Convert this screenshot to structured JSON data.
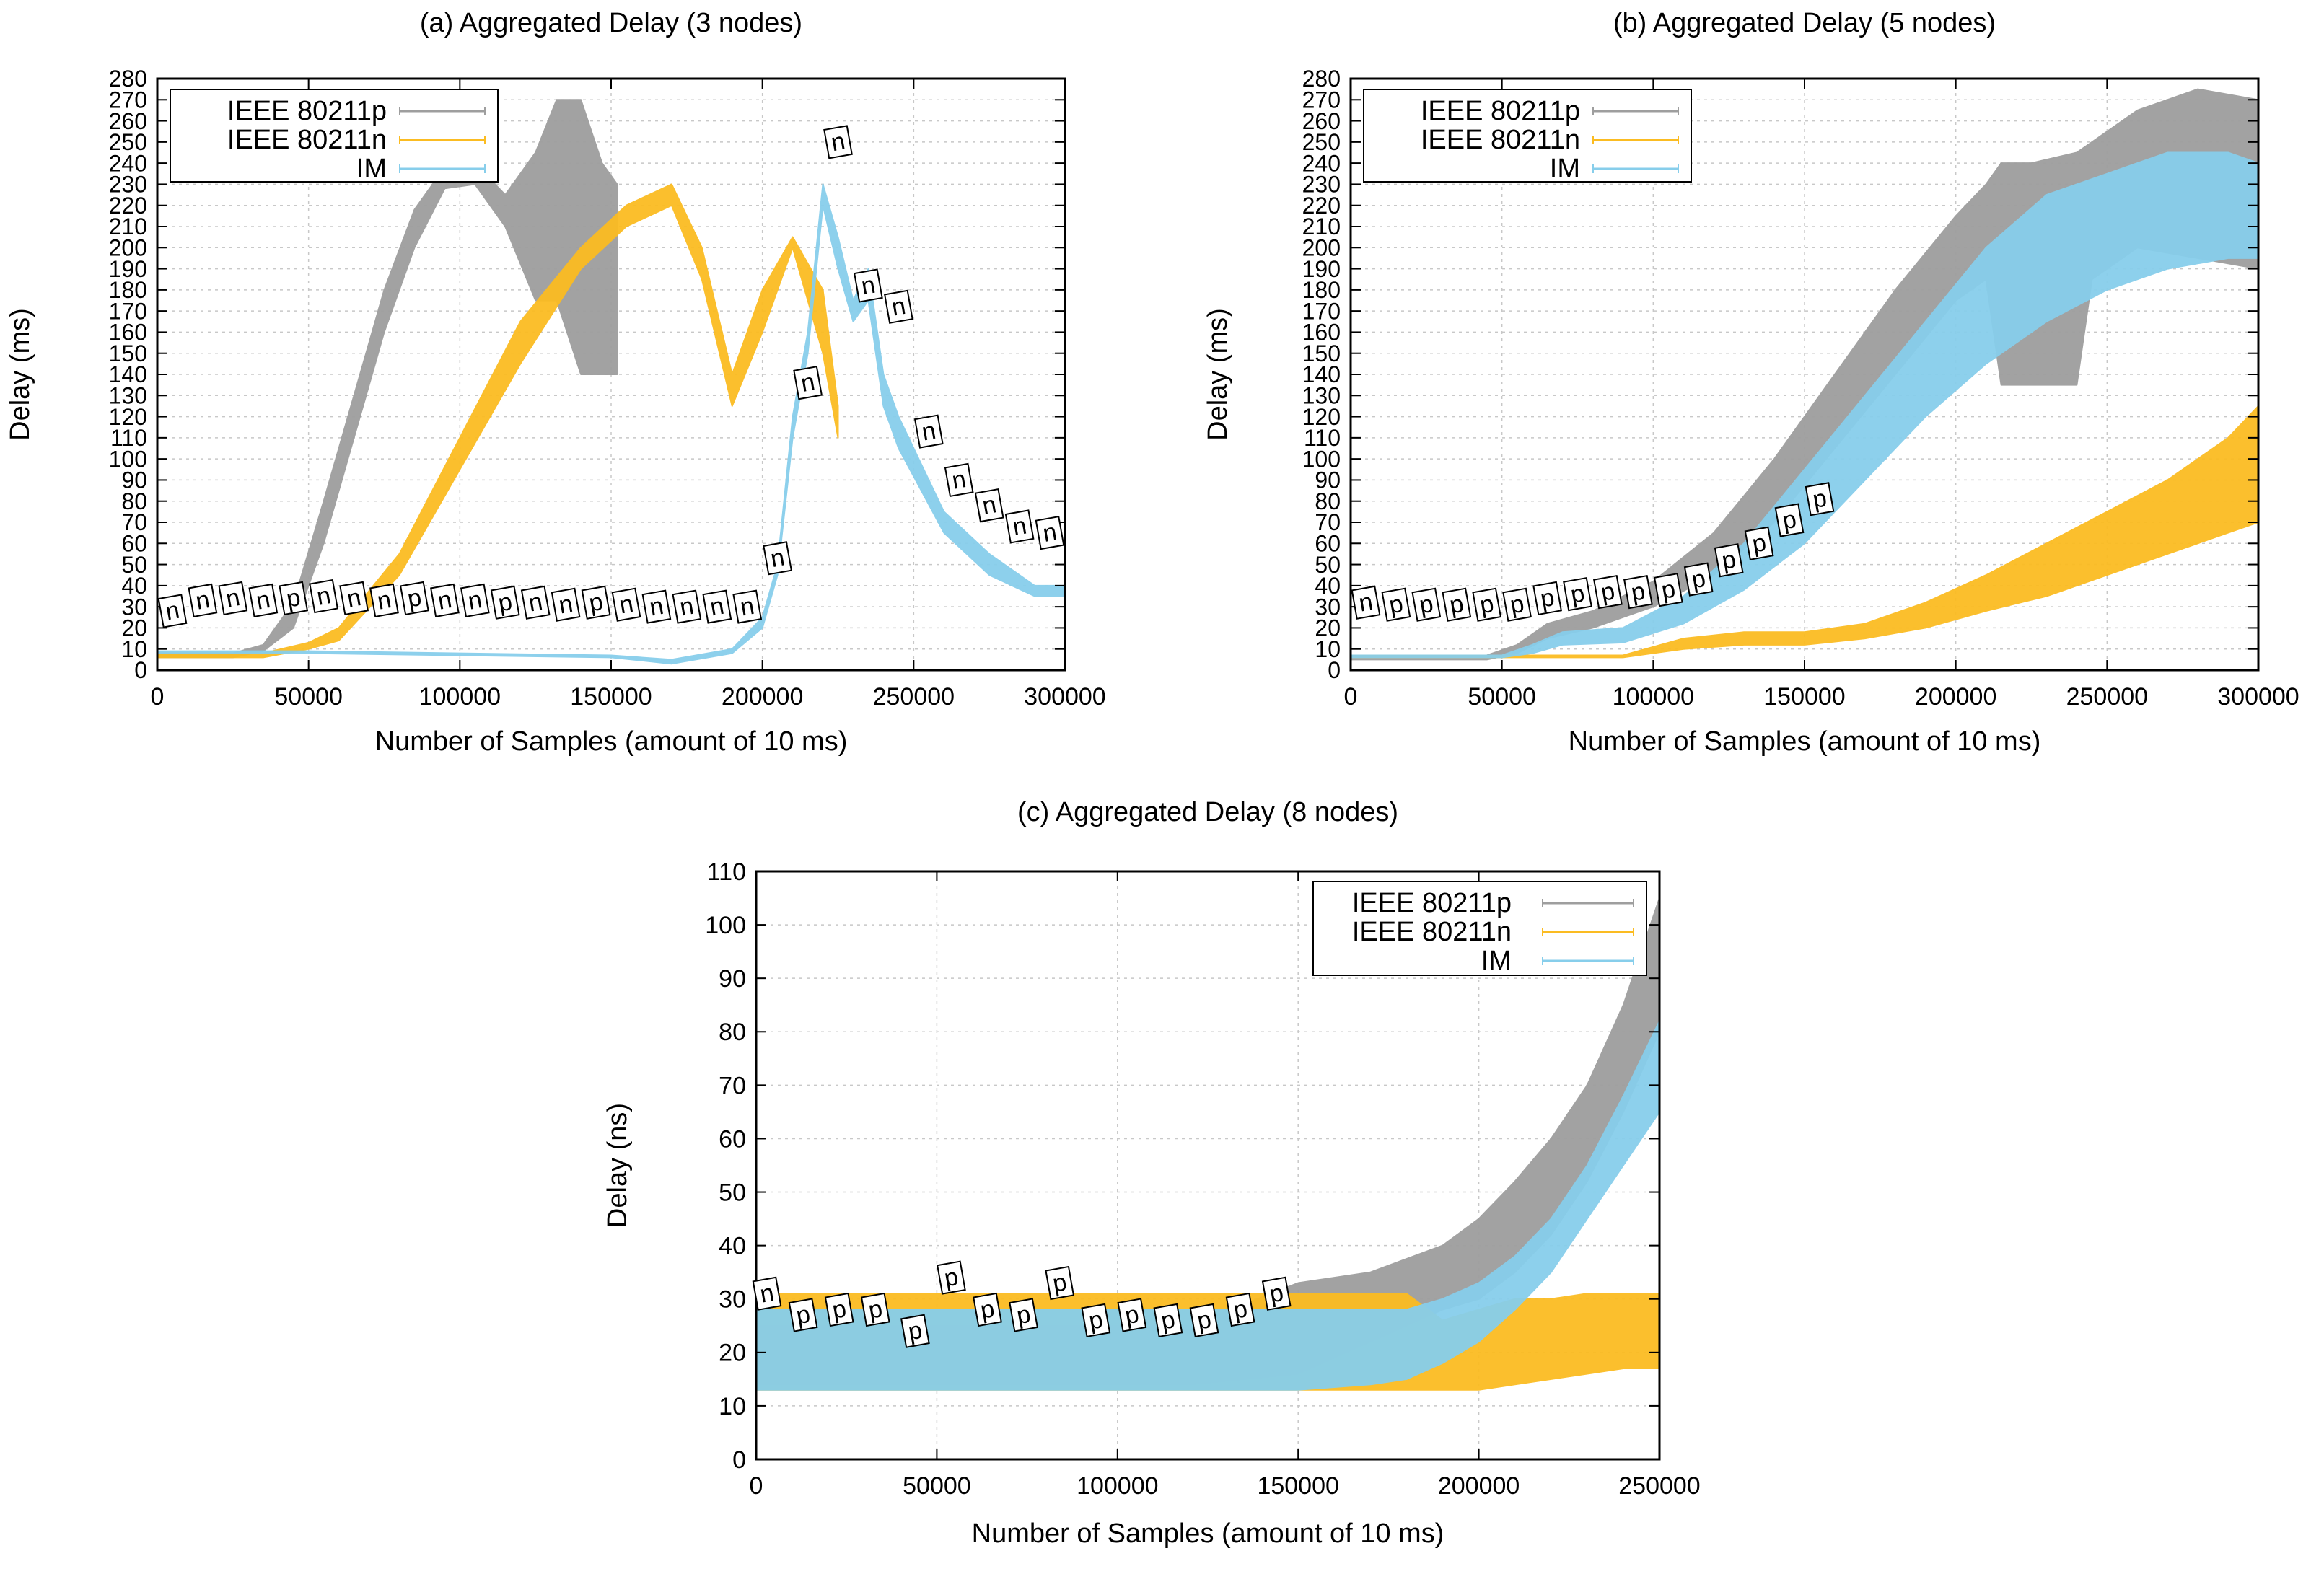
{
  "colors": {
    "p": "#9e9e9e",
    "n": "#fbbc22",
    "im": "#87ceeb",
    "grid": "#c8c8c8",
    "axis": "#000000"
  },
  "chart_data": [
    {
      "type": "line",
      "title": "(a) Aggregated Delay (3 nodes)",
      "xlabel": "Number of Samples (amount of 10 ms)",
      "ylabel": "Delay (ms)",
      "xlim": [
        0,
        300000
      ],
      "ylim": [
        0,
        280
      ],
      "xticks": [
        0,
        50000,
        100000,
        150000,
        200000,
        250000,
        300000
      ],
      "xtick_labels": [
        "0",
        "50000",
        "100000",
        "150000",
        "200000",
        "250000",
        "300000"
      ],
      "yticks": [
        0,
        10,
        20,
        30,
        40,
        50,
        60,
        70,
        80,
        90,
        100,
        110,
        120,
        130,
        140,
        150,
        160,
        170,
        180,
        190,
        200,
        210,
        220,
        230,
        240,
        250,
        260,
        270,
        280
      ],
      "ytick_labels": [
        "0",
        "10",
        "20",
        "30",
        "40",
        "50",
        "60",
        "70",
        "80",
        "90",
        "100",
        "110",
        "120",
        "130",
        "140",
        "150",
        "160",
        "170",
        "180",
        "190",
        "200",
        "210",
        "220",
        "230",
        "240",
        "250",
        "260",
        "270",
        "280"
      ],
      "legend": {
        "position": "top-left",
        "entries": [
          "IEEE 80211p",
          "IEEE 80211n",
          "IM"
        ]
      },
      "series": [
        {
          "name": "IEEE 80211p",
          "key": "p",
          "x": [
            0,
            25000,
            35000,
            45000,
            55000,
            65000,
            75000,
            85000,
            95000,
            105000,
            115000,
            125000,
            132000,
            140000,
            147000,
            152000
          ],
          "low": [
            6,
            6,
            9,
            20,
            60,
            110,
            160,
            200,
            228,
            230,
            210,
            175,
            175,
            140,
            140,
            140
          ],
          "high": [
            8,
            8,
            12,
            32,
            80,
            130,
            180,
            218,
            238,
            240,
            225,
            245,
            270,
            270,
            240,
            230
          ]
        },
        {
          "name": "IEEE 80211n",
          "key": "n",
          "x": [
            0,
            35000,
            50000,
            60000,
            80000,
            100000,
            120000,
            140000,
            155000,
            170000,
            180000,
            190000,
            200000,
            210000,
            220000,
            225000
          ],
          "low": [
            6,
            6,
            10,
            14,
            45,
            95,
            145,
            190,
            210,
            220,
            185,
            125,
            160,
            200,
            150,
            110
          ],
          "high": [
            8,
            8,
            13,
            20,
            55,
            110,
            165,
            200,
            220,
            230,
            200,
            140,
            180,
            205,
            180,
            125
          ]
        },
        {
          "name": "IM",
          "key": "im",
          "x": [
            0,
            50000,
            100000,
            150000,
            170000,
            190000,
            200000,
            205000,
            210000,
            215000,
            220000,
            225000,
            230000,
            235000,
            240000,
            245000,
            260000,
            275000,
            290000,
            300000
          ],
          "low": [
            8,
            8,
            7,
            6,
            3,
            8,
            20,
            45,
            110,
            150,
            220,
            190,
            165,
            175,
            125,
            105,
            65,
            45,
            35,
            35
          ],
          "high": [
            9,
            9,
            8,
            7,
            5,
            10,
            25,
            50,
            120,
            160,
            230,
            205,
            175,
            190,
            140,
            120,
            75,
            55,
            40,
            40
          ]
        }
      ],
      "annotations": [
        {
          "label": "n",
          "x": 5000,
          "y": 28
        },
        {
          "label": "n",
          "x": 15000,
          "y": 33
        },
        {
          "label": "n",
          "x": 25000,
          "y": 34
        },
        {
          "label": "n",
          "x": 35000,
          "y": 33
        },
        {
          "label": "p",
          "x": 45000,
          "y": 34
        },
        {
          "label": "n",
          "x": 55000,
          "y": 35
        },
        {
          "label": "n",
          "x": 65000,
          "y": 34
        },
        {
          "label": "n",
          "x": 75000,
          "y": 33
        },
        {
          "label": "p",
          "x": 85000,
          "y": 34
        },
        {
          "label": "n",
          "x": 95000,
          "y": 33
        },
        {
          "label": "n",
          "x": 105000,
          "y": 33
        },
        {
          "label": "p",
          "x": 115000,
          "y": 32
        },
        {
          "label": "n",
          "x": 125000,
          "y": 32
        },
        {
          "label": "n",
          "x": 135000,
          "y": 31
        },
        {
          "label": "p",
          "x": 145000,
          "y": 32
        },
        {
          "label": "n",
          "x": 155000,
          "y": 31
        },
        {
          "label": "n",
          "x": 165000,
          "y": 30
        },
        {
          "label": "n",
          "x": 175000,
          "y": 30
        },
        {
          "label": "n",
          "x": 185000,
          "y": 30
        },
        {
          "label": "n",
          "x": 195000,
          "y": 30
        },
        {
          "label": "n",
          "x": 205000,
          "y": 53
        },
        {
          "label": "n",
          "x": 215000,
          "y": 136
        },
        {
          "label": "n",
          "x": 225000,
          "y": 250
        },
        {
          "label": "n",
          "x": 235000,
          "y": 182
        },
        {
          "label": "n",
          "x": 245000,
          "y": 172
        },
        {
          "label": "n",
          "x": 255000,
          "y": 113
        },
        {
          "label": "n",
          "x": 265000,
          "y": 90
        },
        {
          "label": "n",
          "x": 275000,
          "y": 78
        },
        {
          "label": "n",
          "x": 285000,
          "y": 68
        },
        {
          "label": "n",
          "x": 295000,
          "y": 65
        }
      ]
    },
    {
      "type": "line",
      "title": "(b) Aggregated Delay (5 nodes)",
      "xlabel": "Number of Samples (amount of 10 ms)",
      "ylabel": "Delay (ms)",
      "xlim": [
        0,
        300000
      ],
      "ylim": [
        0,
        280
      ],
      "xticks": [
        0,
        50000,
        100000,
        150000,
        200000,
        250000,
        300000
      ],
      "xtick_labels": [
        "0",
        "50000",
        "100000",
        "150000",
        "200000",
        "250000",
        "300000"
      ],
      "yticks": [
        0,
        10,
        20,
        30,
        40,
        50,
        60,
        70,
        80,
        90,
        100,
        110,
        120,
        130,
        140,
        150,
        160,
        170,
        180,
        190,
        200,
        210,
        220,
        230,
        240,
        250,
        260,
        270,
        280
      ],
      "ytick_labels": [
        "0",
        "10",
        "20",
        "30",
        "40",
        "50",
        "60",
        "70",
        "80",
        "90",
        "100",
        "110",
        "120",
        "130",
        "140",
        "150",
        "160",
        "170",
        "180",
        "190",
        "200",
        "210",
        "220",
        "230",
        "240",
        "250",
        "260",
        "270",
        "280"
      ],
      "legend": {
        "position": "top-left",
        "entries": [
          "IEEE 80211p",
          "IEEE 80211n",
          "IM"
        ]
      },
      "series": [
        {
          "name": "IEEE 80211p",
          "key": "p",
          "x": [
            0,
            45000,
            55000,
            65000,
            80000,
            100000,
            120000,
            140000,
            160000,
            180000,
            200000,
            210000,
            215000,
            225000,
            240000,
            245000,
            260000,
            280000,
            300000
          ],
          "low": [
            5,
            5,
            8,
            15,
            20,
            30,
            45,
            70,
            105,
            140,
            175,
            185,
            135,
            135,
            135,
            185,
            200,
            195,
            190
          ],
          "high": [
            7,
            7,
            12,
            22,
            28,
            42,
            65,
            100,
            140,
            180,
            215,
            230,
            240,
            240,
            245,
            250,
            265,
            275,
            270
          ]
        },
        {
          "name": "IEEE 80211n",
          "key": "n",
          "x": [
            0,
            90000,
            110000,
            130000,
            150000,
            170000,
            190000,
            210000,
            230000,
            250000,
            270000,
            290000,
            300000
          ],
          "low": [
            6,
            6,
            10,
            12,
            12,
            15,
            20,
            28,
            35,
            45,
            55,
            65,
            70
          ],
          "high": [
            7,
            7,
            15,
            18,
            18,
            22,
            32,
            45,
            60,
            75,
            90,
            110,
            125
          ]
        },
        {
          "name": "IM",
          "key": "im",
          "x": [
            0,
            50000,
            60000,
            70000,
            90000,
            110000,
            130000,
            150000,
            170000,
            190000,
            210000,
            230000,
            250000,
            270000,
            290000,
            300000
          ],
          "low": [
            6,
            6,
            8,
            12,
            13,
            22,
            38,
            60,
            90,
            120,
            145,
            165,
            180,
            190,
            195,
            195
          ],
          "high": [
            7,
            7,
            12,
            18,
            20,
            35,
            60,
            95,
            130,
            165,
            200,
            225,
            235,
            245,
            245,
            240
          ]
        }
      ],
      "annotations": [
        {
          "label": "n",
          "x": 5000,
          "y": 32
        },
        {
          "label": "p",
          "x": 15000,
          "y": 31
        },
        {
          "label": "p",
          "x": 25000,
          "y": 31
        },
        {
          "label": "p",
          "x": 35000,
          "y": 31
        },
        {
          "label": "p",
          "x": 45000,
          "y": 31
        },
        {
          "label": "p",
          "x": 55000,
          "y": 31
        },
        {
          "label": "p",
          "x": 65000,
          "y": 34
        },
        {
          "label": "p",
          "x": 75000,
          "y": 36
        },
        {
          "label": "p",
          "x": 85000,
          "y": 37
        },
        {
          "label": "p",
          "x": 95000,
          "y": 37
        },
        {
          "label": "p",
          "x": 105000,
          "y": 38
        },
        {
          "label": "p",
          "x": 115000,
          "y": 43
        },
        {
          "label": "p",
          "x": 125000,
          "y": 52
        },
        {
          "label": "p",
          "x": 135000,
          "y": 60
        },
        {
          "label": "p",
          "x": 145000,
          "y": 71
        },
        {
          "label": "p",
          "x": 155000,
          "y": 81
        }
      ]
    },
    {
      "type": "line",
      "title": "(c) Aggregated Delay (8 nodes)",
      "xlabel": "Number of Samples (amount of 10 ms)",
      "ylabel": "Delay (ns)",
      "xlim": [
        0,
        250000
      ],
      "ylim": [
        0,
        110
      ],
      "xticks": [
        0,
        50000,
        100000,
        150000,
        200000,
        250000
      ],
      "xtick_labels": [
        "0",
        "50000",
        "100000",
        "150000",
        "200000",
        "250000"
      ],
      "yticks": [
        0,
        10,
        20,
        30,
        40,
        50,
        60,
        70,
        80,
        90,
        100,
        110
      ],
      "ytick_labels": [
        "0",
        "10",
        "20",
        "30",
        "40",
        "50",
        "60",
        "70",
        "80",
        "90",
        "100",
        "110"
      ],
      "legend": {
        "position": "top-right",
        "entries": [
          "IEEE 80211p",
          "IEEE 80211n",
          "IM"
        ]
      },
      "series": [
        {
          "name": "IEEE 80211p",
          "key": "p",
          "x": [
            0,
            120000,
            150000,
            170000,
            190000,
            200000,
            210000,
            220000,
            230000,
            240000,
            250000
          ],
          "low": [
            14,
            14,
            16,
            22,
            28,
            30,
            35,
            42,
            52,
            65,
            80
          ],
          "high": [
            25,
            25,
            33,
            35,
            40,
            45,
            52,
            60,
            70,
            85,
            105
          ]
        },
        {
          "name": "IEEE 80211n",
          "key": "n",
          "x": [
            0,
            180000,
            190000,
            200000,
            210000,
            220000,
            230000,
            240000,
            250000
          ],
          "low": [
            13,
            13,
            13,
            13,
            14,
            15,
            16,
            17,
            17
          ],
          "high": [
            31,
            31,
            26,
            28,
            30,
            30,
            31,
            31,
            31
          ]
        },
        {
          "name": "IM",
          "key": "im",
          "x": [
            0,
            150000,
            170000,
            180000,
            190000,
            200000,
            210000,
            220000,
            230000,
            240000,
            250000
          ],
          "low": [
            13,
            13,
            14,
            15,
            18,
            22,
            28,
            35,
            45,
            55,
            65
          ],
          "high": [
            28,
            28,
            28,
            28,
            30,
            33,
            38,
            45,
            55,
            68,
            82
          ]
        }
      ],
      "annotations": [
        {
          "label": "n",
          "x": 3000,
          "y": 31
        },
        {
          "label": "p",
          "x": 13000,
          "y": 27
        },
        {
          "label": "p",
          "x": 23000,
          "y": 28
        },
        {
          "label": "p",
          "x": 33000,
          "y": 28
        },
        {
          "label": "p",
          "x": 44000,
          "y": 24
        },
        {
          "label": "p",
          "x": 54000,
          "y": 34
        },
        {
          "label": "p",
          "x": 64000,
          "y": 28
        },
        {
          "label": "p",
          "x": 74000,
          "y": 27
        },
        {
          "label": "p",
          "x": 84000,
          "y": 33
        },
        {
          "label": "p",
          "x": 94000,
          "y": 26
        },
        {
          "label": "p",
          "x": 104000,
          "y": 27
        },
        {
          "label": "p",
          "x": 114000,
          "y": 26
        },
        {
          "label": "p",
          "x": 124000,
          "y": 26
        },
        {
          "label": "p",
          "x": 134000,
          "y": 28
        },
        {
          "label": "p",
          "x": 144000,
          "y": 31
        }
      ]
    }
  ]
}
